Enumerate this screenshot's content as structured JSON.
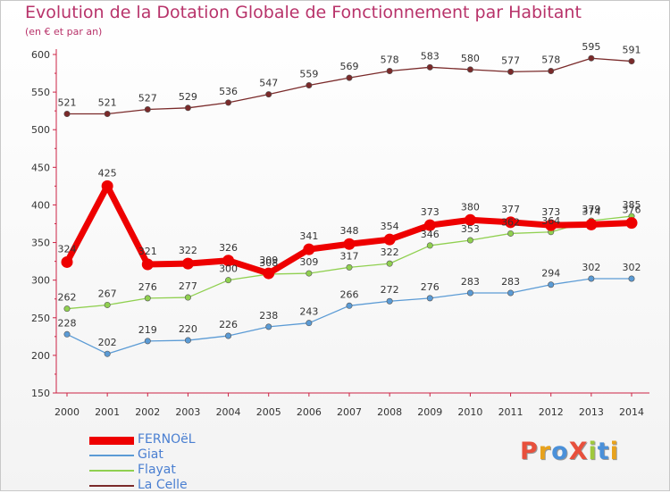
{
  "title": "Evolution de la Dotation Globale de Fonctionnement par Habitant",
  "subtitle": "(en € et par an)",
  "logo": {
    "text": "ProXiti",
    "colors": [
      "#e8503c",
      "#e8a21c",
      "#4a90d9",
      "#e8503c",
      "#9fc93c",
      "#4a90d9",
      "#e8a21c"
    ]
  },
  "chart_data": {
    "type": "line",
    "x": [
      2000,
      2001,
      2002,
      2003,
      2004,
      2005,
      2006,
      2007,
      2008,
      2009,
      2010,
      2011,
      2012,
      2013,
      2014
    ],
    "ylim": [
      150,
      600
    ],
    "yticks": [
      150,
      200,
      250,
      300,
      350,
      400,
      450,
      500,
      550,
      600
    ],
    "grid": false,
    "legend_position": "bottom-left",
    "series": [
      {
        "name": "La Celle",
        "color": "#7a2a2a",
        "values": [
          521,
          521,
          527,
          529,
          536,
          547,
          559,
          569,
          578,
          583,
          580,
          577,
          578,
          595,
          591
        ]
      },
      {
        "name": "Giat",
        "color": "#5b9bd5",
        "values": [
          228,
          202,
          219,
          220,
          226,
          238,
          243,
          266,
          272,
          276,
          283,
          283,
          294,
          302,
          302
        ]
      },
      {
        "name": "Flayat",
        "color": "#90d050",
        "values": [
          262,
          267,
          276,
          277,
          300,
          308,
          309,
          317,
          322,
          346,
          353,
          362,
          364,
          379,
          385
        ]
      },
      {
        "name": "FERNOëL",
        "color": "#ee0000",
        "values": [
          324,
          425,
          321,
          322,
          326,
          309,
          341,
          348,
          354,
          373,
          380,
          377,
          373,
          374,
          376
        ]
      }
    ],
    "labels": {
      "La Celle": [
        "521",
        "521",
        "527",
        "529",
        "536",
        "547",
        "559",
        "569",
        "578",
        "583",
        "580",
        "577",
        "578",
        "595",
        "591"
      ],
      "Giat": [
        "228",
        "202",
        "219",
        "220",
        "226",
        "238",
        "243",
        "266",
        "272",
        "276",
        "283",
        "283",
        "294",
        "302",
        "302"
      ],
      "Flayat": [
        "262",
        "267",
        "276",
        "277",
        "300",
        "308",
        "309",
        "317",
        "322",
        "346",
        "353",
        "362",
        "364",
        "379",
        "385"
      ],
      "FERNOëL": [
        "324",
        "425",
        "321",
        "322",
        "326",
        "309",
        "341",
        "348",
        "354",
        "373",
        "380",
        "377",
        "373",
        "374",
        "376"
      ]
    },
    "legend_order": [
      "FERNOëL",
      "Giat",
      "Flayat",
      "La Celle"
    ]
  }
}
